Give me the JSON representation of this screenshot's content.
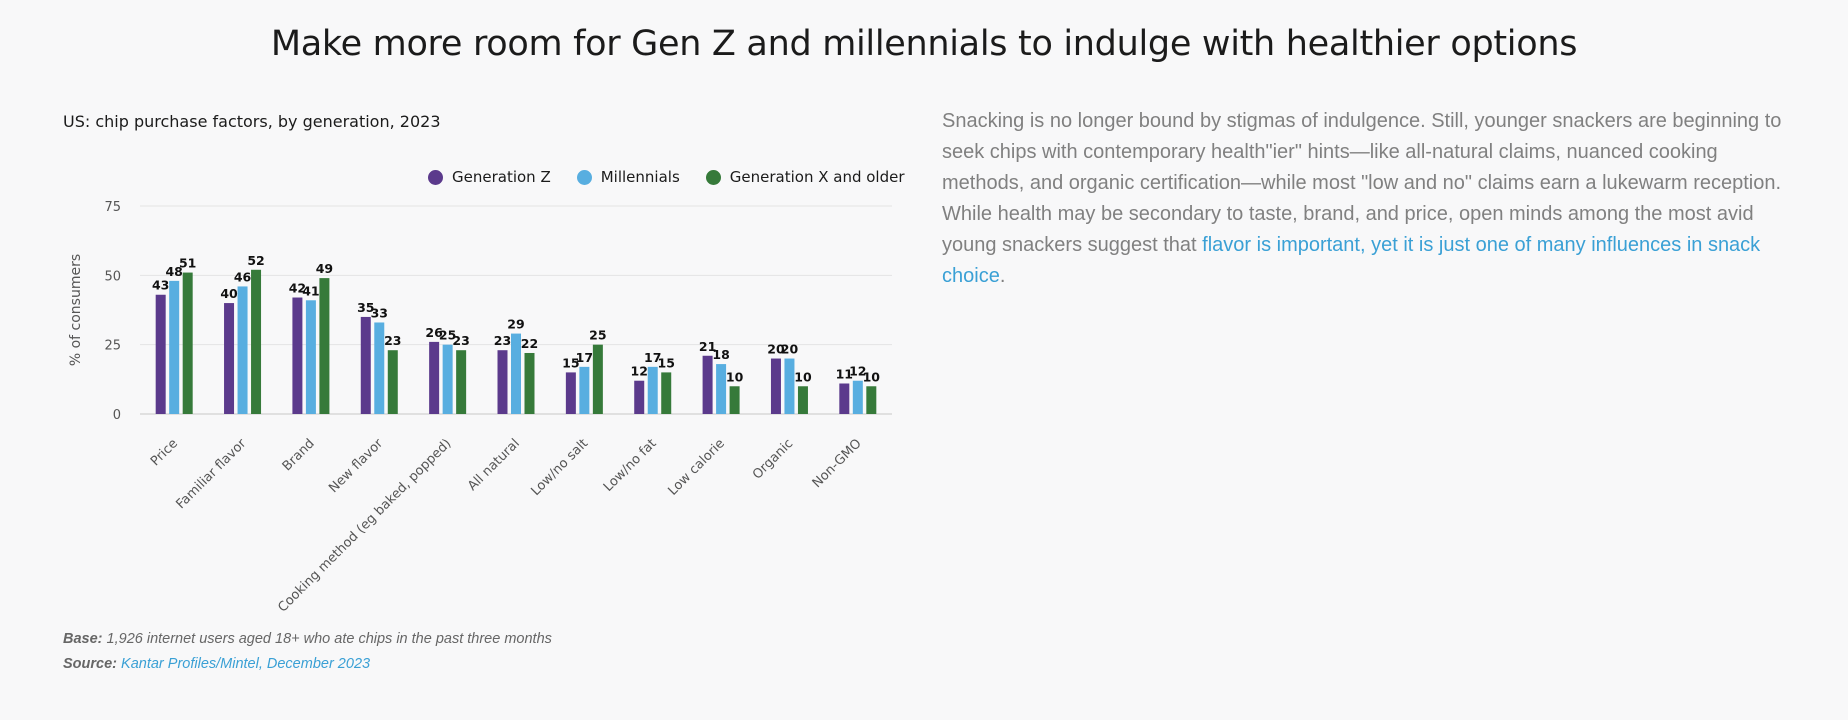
{
  "page": {
    "title": "Make more room for Gen Z and millennials to indulge with healthier options"
  },
  "chart_data": {
    "type": "bar",
    "title": "US: chip purchase factors, by generation, 2023",
    "xlabel": "",
    "ylabel": "% of consumers",
    "ylim": [
      0,
      75
    ],
    "yticks": [
      0,
      25,
      50,
      75
    ],
    "grid": true,
    "legend_position": "top-right",
    "categories": [
      "Price",
      "Familiar flavor",
      "Brand",
      "New flavor",
      "Cooking method (eg baked, popped)",
      "All natural",
      "Low/no salt",
      "Low/no fat",
      "Low calorie",
      "Organic",
      "Non-GMO"
    ],
    "series": [
      {
        "name": "Generation Z",
        "color": "#5b3a8c",
        "values": [
          43,
          40,
          42,
          35,
          26,
          23,
          15,
          12,
          21,
          20,
          11
        ]
      },
      {
        "name": "Millennials",
        "color": "#58aee0",
        "values": [
          48,
          46,
          41,
          33,
          25,
          29,
          17,
          17,
          18,
          20,
          12
        ]
      },
      {
        "name": "Generation X and older",
        "color": "#367a3a",
        "values": [
          51,
          52,
          49,
          23,
          23,
          22,
          25,
          15,
          10,
          10,
          10
        ]
      }
    ]
  },
  "footnotes": {
    "base_label": "Base:",
    "base_text": "1,926 internet users aged 18+ who ate chips in the past three months",
    "source_label": "Source:",
    "source_text": "Kantar Profiles/Mintel, December 2023"
  },
  "body": {
    "paragraph": "Snacking is no longer bound by stigmas of indulgence. Still, younger snackers are beginning to seek chips with contemporary health\"ier\" hints—like all-natural claims, nuanced cooking methods, and organic certification—while most \"low and no\" claims earn a lukewarm reception. While health may be secondary to taste, brand, and price, open minds among the most avid young snackers suggest that ",
    "highlight": "flavor is important, yet it is just one of many influences in snack choice",
    "end": "."
  }
}
